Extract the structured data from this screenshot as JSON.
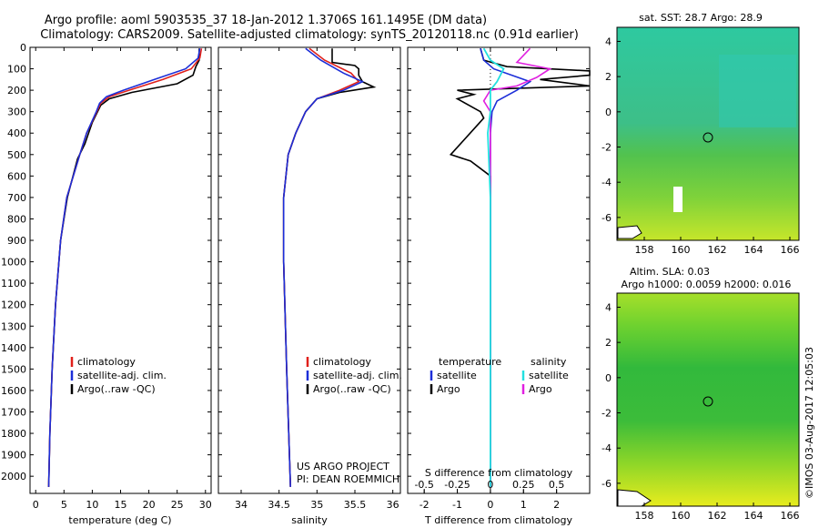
{
  "header": {
    "line1": "Argo profile: aoml 5903535_37 18-Jan-2012 1.3706S 161.1495E (DM data)",
    "line2": "Climatology: CARS2009. Satellite-adjusted climatology: synTS_20120118.nc (0.91d earlier)"
  },
  "colors": {
    "climatology": "#e0201b",
    "satellite": "#1c2ed8",
    "argo": "#000000",
    "sat_salinity": "#22e0e0",
    "argo_salinity": "#e020e0"
  },
  "depth_axis": {
    "ticks": [
      0,
      100,
      200,
      300,
      400,
      500,
      600,
      700,
      800,
      900,
      1000,
      1100,
      1200,
      1300,
      1400,
      1500,
      1600,
      1700,
      1800,
      1900,
      2000
    ]
  },
  "chart_data": [
    {
      "type": "line",
      "xlabel": "temperature (deg C)",
      "xlim": [
        -1,
        31
      ],
      "xticks": [
        0,
        5,
        10,
        15,
        20,
        25,
        30
      ],
      "ylim": [
        2080,
        0
      ],
      "legend": {
        "items": [
          "climatology",
          "satellite-adj. clim.",
          "Argo(..raw -QC)"
        ]
      },
      "series": [
        {
          "name": "climatology",
          "depth": [
            5,
            50,
            100,
            150,
            200,
            230,
            260,
            300,
            400,
            500,
            700,
            900,
            1200,
            1500,
            1800,
            2050
          ],
          "values": [
            29.3,
            29.0,
            27.5,
            22.5,
            16.5,
            13.0,
            11.5,
            10.8,
            9.0,
            7.8,
            5.5,
            4.4,
            3.5,
            2.9,
            2.5,
            2.3
          ]
        },
        {
          "name": "satellite-adj. clim.",
          "depth": [
            5,
            50,
            100,
            150,
            200,
            230,
            260,
            300,
            400,
            500,
            700,
            900,
            1200,
            1500,
            1800,
            2050
          ],
          "values": [
            29.0,
            28.7,
            26.5,
            21.0,
            15.5,
            12.5,
            11.3,
            10.7,
            9.0,
            7.8,
            5.5,
            4.4,
            3.5,
            2.9,
            2.5,
            2.3
          ]
        },
        {
          "name": "Argo(..raw -QC)",
          "depth": [
            5,
            60,
            90,
            130,
            170,
            210,
            240,
            270,
            350,
            450,
            520,
            700,
            900,
            1200,
            1500,
            1800,
            2050
          ],
          "values": [
            28.9,
            28.9,
            28.3,
            27.8,
            25.0,
            17.0,
            13.0,
            11.5,
            10.0,
            8.7,
            7.4,
            5.6,
            4.4,
            3.5,
            2.9,
            2.5,
            2.3
          ]
        }
      ]
    },
    {
      "type": "line",
      "xlabel": "salinity",
      "xlim": [
        33.7,
        36.1
      ],
      "xticks": [
        34,
        34.5,
        35,
        35.5,
        36
      ],
      "ylim": [
        2080,
        0
      ],
      "legend": {
        "items": [
          "climatology",
          "satellite-adj. clim.",
          "Argo(..raw -QC)"
        ]
      },
      "annotation": [
        "US ARGO PROJECT",
        "PI: DEAN ROEMMICH"
      ],
      "series": [
        {
          "name": "climatology",
          "depth": [
            5,
            60,
            120,
            160,
            200,
            240,
            300,
            400,
            500,
            700,
            1000,
            1500,
            2050
          ],
          "values": [
            34.9,
            35.1,
            35.45,
            35.55,
            35.3,
            35.0,
            34.85,
            34.72,
            34.62,
            34.56,
            34.56,
            34.6,
            34.65
          ]
        },
        {
          "name": "satellite-adj. clim.",
          "depth": [
            5,
            60,
            120,
            160,
            200,
            240,
            300,
            400,
            500,
            700,
            1000,
            1500,
            2050
          ],
          "values": [
            34.85,
            35.05,
            35.35,
            35.6,
            35.35,
            35.0,
            34.85,
            34.72,
            34.62,
            34.56,
            34.56,
            34.6,
            34.65
          ]
        },
        {
          "name": "Argo(..raw -QC)",
          "depth": [
            5,
            70,
            85,
            100,
            130,
            160,
            185,
            210,
            240,
            300,
            400,
            500,
            700,
            1000,
            1500,
            2050
          ],
          "values": [
            35.2,
            35.2,
            35.5,
            35.55,
            35.55,
            35.6,
            35.75,
            35.3,
            35.0,
            34.85,
            34.72,
            34.62,
            34.56,
            34.56,
            34.6,
            34.65
          ]
        }
      ]
    },
    {
      "type": "line",
      "xlabel": "T difference from climatology",
      "xlabel2": "S difference from climatology",
      "xlim": [
        -2.5,
        3
      ],
      "xticks": [
        -2,
        -1,
        0,
        1,
        2
      ],
      "xticks2": [
        "-0.5",
        "-0.25",
        "0",
        "0.25",
        "0.5"
      ],
      "ylim": [
        2080,
        0
      ],
      "legend": {
        "temperature": [
          "satellite",
          "Argo"
        ],
        "salinity": [
          "satellite",
          "Argo"
        ],
        "temperature_title": "temperature",
        "salinity_title": "salinity"
      },
      "series": [
        {
          "name": "T satellite",
          "depth": [
            5,
            60,
            100,
            160,
            200,
            250,
            300,
            400,
            600,
            1000,
            1500,
            2050
          ],
          "values": [
            -0.3,
            -0.2,
            0.1,
            1.2,
            0.8,
            0.2,
            0.05,
            0.0,
            0.0,
            0.0,
            0.0,
            0.0
          ]
        },
        {
          "name": "T Argo",
          "depth": [
            5,
            60,
            90,
            110,
            130,
            150,
            180,
            200,
            220,
            240,
            300,
            330,
            500,
            530,
            600,
            1000,
            1500,
            2050
          ],
          "values": [
            -0.3,
            -0.2,
            0.5,
            3.0,
            3.0,
            1.5,
            3.0,
            -1.0,
            -0.5,
            -1.0,
            -0.3,
            -0.2,
            -1.2,
            -0.6,
            0.0,
            0.0,
            0.0,
            0.0
          ]
        },
        {
          "name": "S satellite",
          "depth": [
            5,
            60,
            100,
            160,
            200,
            300,
            400,
            700,
            1000,
            1500,
            2050
          ],
          "values": [
            -0.05,
            0.0,
            0.1,
            0.05,
            0.0,
            0.0,
            -0.02,
            0.0,
            0.0,
            0.0,
            0.0
          ]
        },
        {
          "name": "S Argo",
          "depth": [
            5,
            70,
            100,
            140,
            180,
            200,
            250,
            300,
            400,
            2050
          ],
          "values": [
            0.3,
            0.2,
            0.45,
            0.35,
            0.2,
            0.0,
            -0.05,
            0.0,
            0.0,
            0.0
          ]
        }
      ]
    },
    {
      "type": "heatmap",
      "title": "sat. SST: 28.7  Argo: 28.9",
      "xticks": [
        158,
        160,
        162,
        164,
        166
      ],
      "yticks": [
        4,
        2,
        0,
        -2,
        -4,
        -6
      ],
      "marker": {
        "lon": 161.15,
        "lat": -1.37
      }
    },
    {
      "type": "heatmap",
      "title": "Altim. SLA: 0.03",
      "subtitle": "Argo h1000: 0.0059  h2000: 0.016",
      "xticks": [
        158,
        160,
        162,
        164,
        166
      ],
      "yticks": [
        4,
        2,
        0,
        -2,
        -4,
        -6
      ],
      "marker": {
        "lon": 161.15,
        "lat": -1.37
      }
    }
  ],
  "footer": {
    "stamp": "©IMOS 03-Aug-2017 12:05:03"
  }
}
